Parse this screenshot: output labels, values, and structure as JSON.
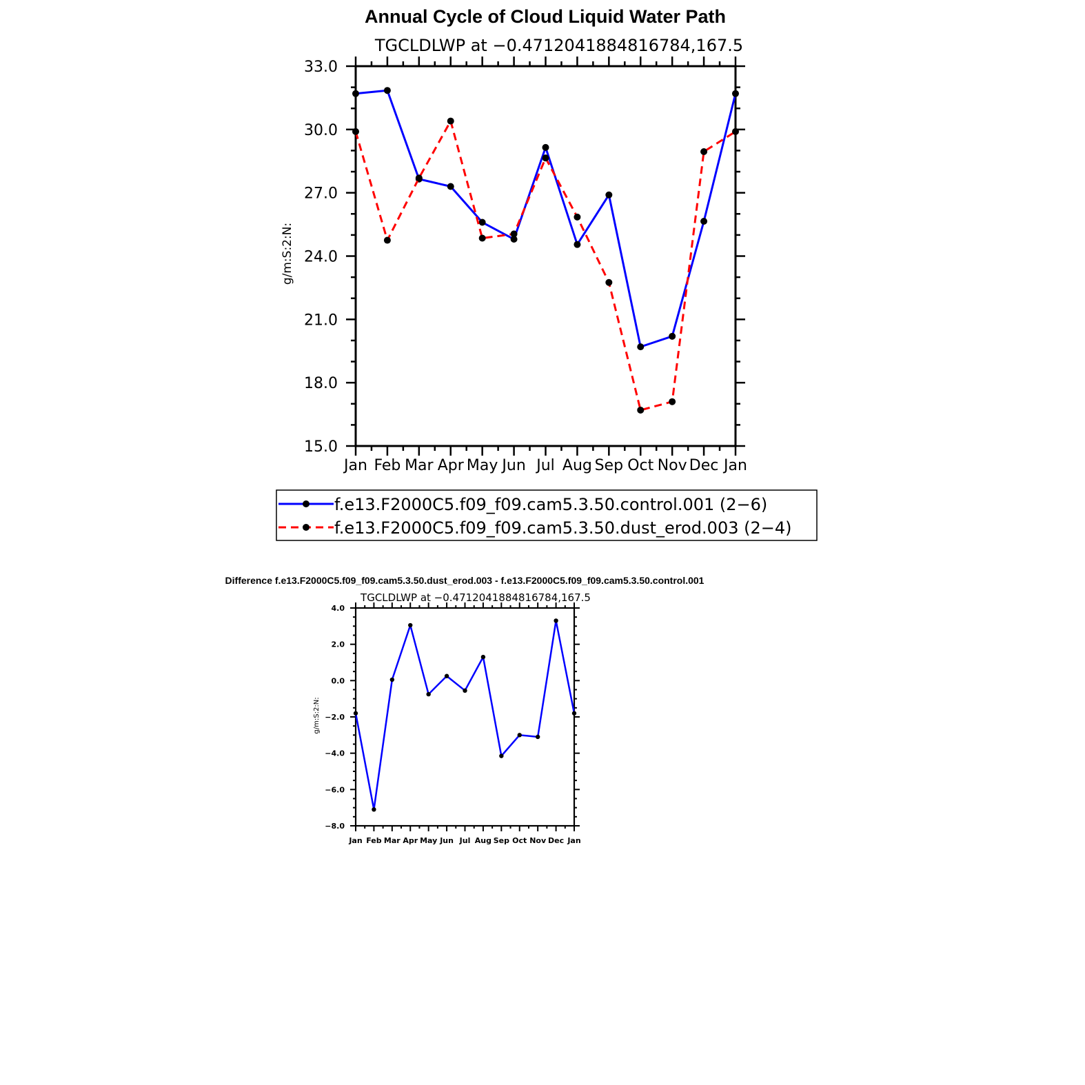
{
  "figure_title": "Annual Cycle of Cloud Liquid Water Path",
  "chart_data": [
    {
      "type": "line",
      "subtitle": "TGCLDLWP at −0.4712041884816784,167.5",
      "ylabel": "g/m:S:2:N:",
      "xlabel": "",
      "categories": [
        "Jan",
        "Feb",
        "Mar",
        "Apr",
        "May",
        "Jun",
        "Jul",
        "Aug",
        "Sep",
        "Oct",
        "Nov",
        "Dec",
        "Jan"
      ],
      "ylim": [
        15.0,
        33.0
      ],
      "yticks": [
        "15.0",
        "18.0",
        "21.0",
        "24.0",
        "27.0",
        "30.0",
        "33.0"
      ],
      "yticks_values": [
        15,
        18,
        21,
        24,
        27,
        30,
        33
      ],
      "grid": false,
      "legend_position": "bottom",
      "series": [
        {
          "name": "f.e13.F2000C5.f09_f09.cam5.3.50.control.001 (2−6)",
          "color": "#0000ff",
          "dash": "solid",
          "values": [
            31.7,
            31.85,
            27.65,
            27.3,
            25.6,
            24.8,
            29.15,
            24.55,
            26.9,
            19.7,
            20.2,
            25.65,
            31.7
          ]
        },
        {
          "name": "f.e13.F2000C5.f09_f09.cam5.3.50.dust_erod.003 (2−4)",
          "color": "#ff0000",
          "dash": "dashed",
          "values": [
            29.9,
            24.75,
            27.7,
            30.4,
            24.85,
            25.05,
            28.65,
            25.85,
            22.75,
            16.7,
            17.1,
            28.95,
            29.9
          ]
        }
      ]
    },
    {
      "type": "line",
      "title": "Difference f.e13.F2000C5.f09_f09.cam5.3.50.dust_erod.003 - f.e13.F2000C5.f09_f09.cam5.3.50.control.001",
      "subtitle": "TGCLDLWP at −0.4712041884816784,167.5",
      "ylabel": "g/m:S:2:N:",
      "xlabel": "",
      "categories": [
        "Jan",
        "Feb",
        "Mar",
        "Apr",
        "May",
        "Jun",
        "Jul",
        "Aug",
        "Sep",
        "Oct",
        "Nov",
        "Dec",
        "Jan"
      ],
      "ylim": [
        -8.0,
        4.0
      ],
      "yticks": [
        "−8.0",
        "−6.0",
        "−4.0",
        "−2.0",
        "0.0",
        "2.0",
        "4.0"
      ],
      "yticks_values": [
        -8,
        -6,
        -4,
        -2,
        0,
        2,
        4
      ],
      "grid": false,
      "series": [
        {
          "color": "#0000ff",
          "dash": "solid",
          "values": [
            -1.8,
            -7.1,
            0.05,
            3.05,
            -0.75,
            0.25,
            -0.55,
            1.3,
            -4.15,
            -3.0,
            -3.1,
            3.3,
            -1.8
          ]
        }
      ]
    }
  ]
}
